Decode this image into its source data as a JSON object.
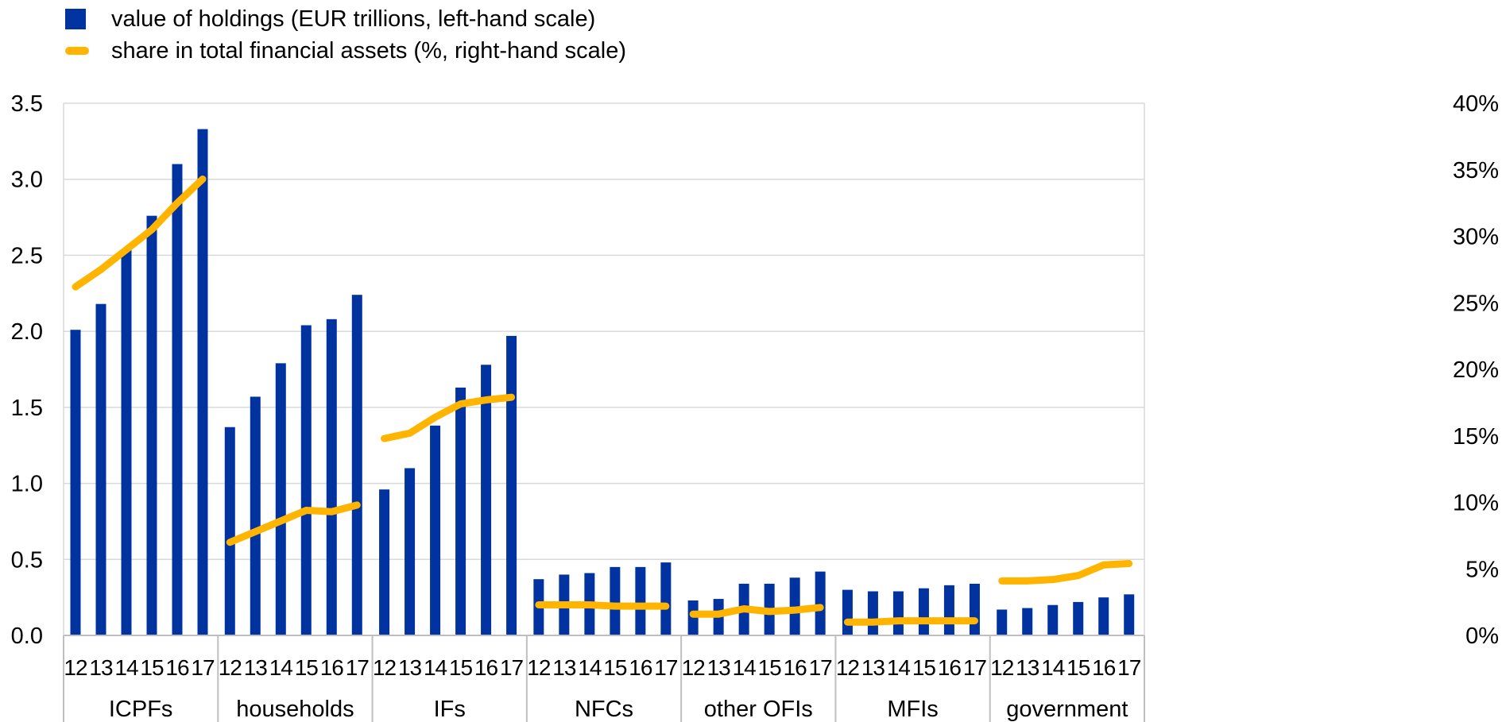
{
  "legend": {
    "bar_label": "value of holdings (EUR trillions, left-hand scale)",
    "line_label": "share in total financial assets (%, right-hand scale)"
  },
  "colors": {
    "bar": "#0033a0",
    "line": "#ffb400",
    "grid": "#d9d9d9",
    "axis_text": "#000000"
  },
  "chart_data": {
    "type": "bar",
    "groups": [
      "ICPFs",
      "households",
      "IFs",
      "NFCs",
      "other OFIs",
      "MFIs",
      "government"
    ],
    "years": [
      "12",
      "13",
      "14",
      "15",
      "16",
      "17"
    ],
    "left_ticks": [
      "0.0",
      "0.5",
      "1.0",
      "1.5",
      "2.0",
      "2.5",
      "3.0",
      "3.5"
    ],
    "right_ticks": [
      "0%",
      "5%",
      "10%",
      "15%",
      "20%",
      "25%",
      "30%",
      "35%",
      "40%"
    ],
    "ylim_left": [
      0,
      3.5
    ],
    "ylim_right": [
      0,
      40
    ],
    "grid": true,
    "legend_position": "top-left",
    "series": [
      {
        "name": "value of holdings (EUR trillions, left-hand scale)",
        "type": "bar",
        "axis": "left",
        "values": [
          [
            2.01,
            2.18,
            2.54,
            2.76,
            3.1,
            3.33
          ],
          [
            1.37,
            1.57,
            1.79,
            2.04,
            2.08,
            2.24
          ],
          [
            0.96,
            1.1,
            1.38,
            1.63,
            1.78,
            1.97
          ],
          [
            0.37,
            0.4,
            0.41,
            0.45,
            0.45,
            0.48
          ],
          [
            0.23,
            0.24,
            0.34,
            0.34,
            0.38,
            0.42
          ],
          [
            0.3,
            0.29,
            0.29,
            0.31,
            0.33,
            0.34
          ],
          [
            0.17,
            0.18,
            0.2,
            0.22,
            0.25,
            0.27
          ]
        ]
      },
      {
        "name": "share in total financial assets (%, right-hand scale)",
        "type": "line",
        "axis": "right",
        "values": [
          [
            26.2,
            27.5,
            29.0,
            30.5,
            32.5,
            34.3
          ],
          [
            7.0,
            7.8,
            8.6,
            9.4,
            9.3,
            9.8
          ],
          [
            14.8,
            15.2,
            16.4,
            17.4,
            17.7,
            17.9
          ],
          [
            2.3,
            2.3,
            2.3,
            2.2,
            2.2,
            2.2
          ],
          [
            1.6,
            1.6,
            2.0,
            1.8,
            1.9,
            2.1
          ],
          [
            1.0,
            1.0,
            1.1,
            1.1,
            1.1,
            1.1
          ],
          [
            4.1,
            4.1,
            4.2,
            4.5,
            5.3,
            5.4
          ]
        ]
      }
    ]
  }
}
